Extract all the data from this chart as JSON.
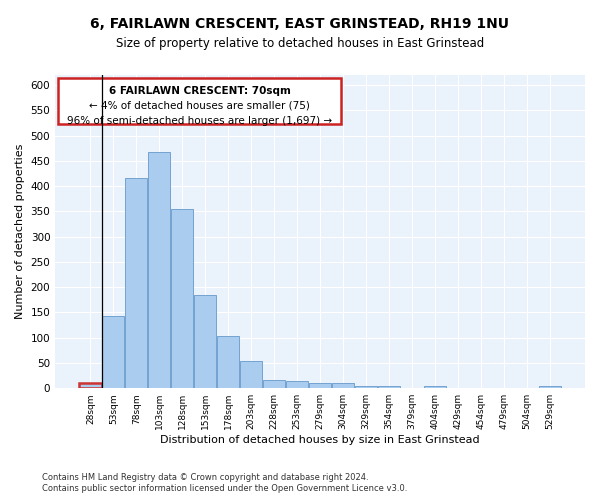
{
  "title": "6, FAIRLAWN CRESCENT, EAST GRINSTEAD, RH19 1NU",
  "subtitle": "Size of property relative to detached houses in East Grinstead",
  "xlabel": "Distribution of detached houses by size in East Grinstead",
  "ylabel": "Number of detached properties",
  "bar_color": "#aaccee",
  "bar_edge_color": "#6699cc",
  "highlight_bar_color": "#cc3333",
  "categories": [
    "28sqm",
    "53sqm",
    "78sqm",
    "103sqm",
    "128sqm",
    "153sqm",
    "178sqm",
    "203sqm",
    "228sqm",
    "253sqm",
    "279sqm",
    "304sqm",
    "329sqm",
    "354sqm",
    "379sqm",
    "404sqm",
    "429sqm",
    "454sqm",
    "479sqm",
    "504sqm",
    "529sqm"
  ],
  "values": [
    10,
    143,
    416,
    467,
    355,
    185,
    103,
    54,
    16,
    14,
    11,
    10,
    5,
    5,
    0,
    5,
    0,
    0,
    0,
    0,
    5
  ],
  "annotation_text_line1": "6 FAIRLAWN CRESCENT: 70sqm",
  "annotation_text_line2": "← 4% of detached houses are smaller (75)",
  "annotation_text_line3": "96% of semi-detached houses are larger (1,697) →",
  "ylim": [
    0,
    620
  ],
  "yticks": [
    0,
    50,
    100,
    150,
    200,
    250,
    300,
    350,
    400,
    450,
    500,
    550,
    600
  ],
  "background_color": "#eaf2fb",
  "footer_line1": "Contains HM Land Registry data © Crown copyright and database right 2024.",
  "footer_line2": "Contains public sector information licensed under the Open Government Licence v3.0."
}
